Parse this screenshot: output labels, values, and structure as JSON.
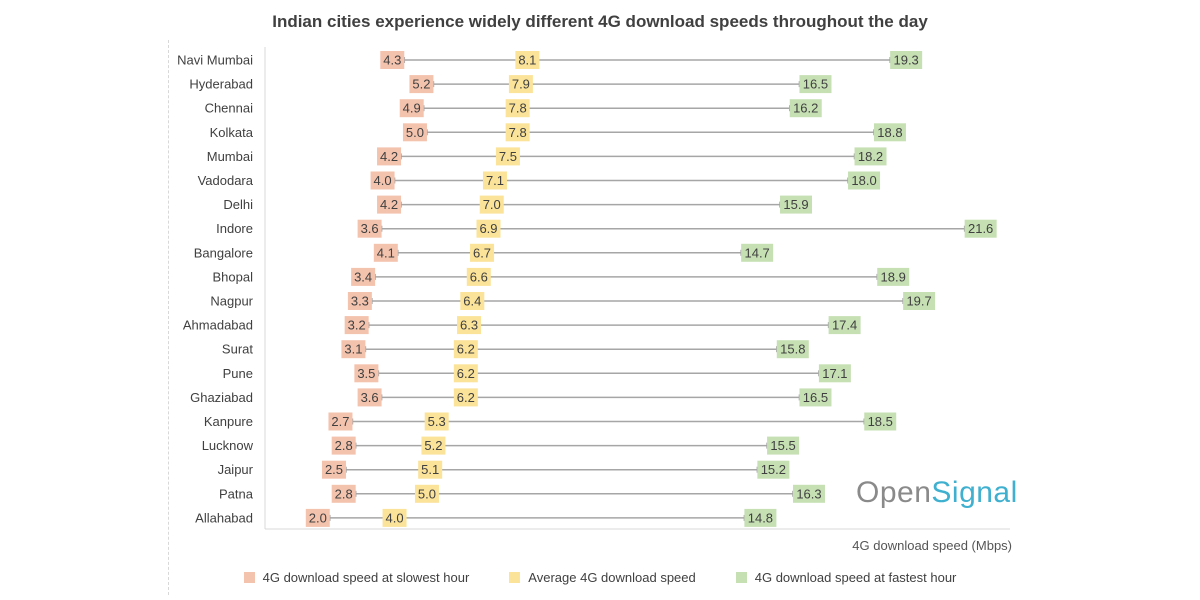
{
  "chart_data": {
    "type": "dumbbell",
    "title": "Indian cities experience widely different 4G download speeds throughout the day",
    "xlabel": "4G download speed (Mbps)",
    "xlim": [
      0,
      23
    ],
    "categories": [
      "Navi Mumbai",
      "Hyderabad",
      "Chennai",
      "Kolkata",
      "Mumbai",
      "Vadodara",
      "Delhi",
      "Indore",
      "Bangalore",
      "Bhopal",
      "Nagpur",
      "Ahmadabad",
      "Surat",
      "Pune",
      "Ghaziabad",
      "Kanpure",
      "Lucknow",
      "Jaipur",
      "Patna",
      "Allahabad"
    ],
    "series": [
      {
        "name": "4G download speed at slowest hour",
        "color": "#f4c3ae",
        "values": [
          4.3,
          5.2,
          4.9,
          5.0,
          4.2,
          4.0,
          4.2,
          3.6,
          4.1,
          3.4,
          3.3,
          3.2,
          3.1,
          3.5,
          3.6,
          2.7,
          2.8,
          2.5,
          2.8,
          2.0
        ],
        "labels": [
          "4.3",
          "5.2",
          "4.9",
          "5.0",
          "4.2",
          "4.0",
          "4.2",
          "3.6",
          "4.1",
          "3.4",
          "3.3",
          "3.2",
          "3.1",
          "3.5",
          "3.6",
          "2.7",
          "2.8",
          "2.5",
          "2.8",
          "2.0"
        ]
      },
      {
        "name": "Average 4G download speed",
        "color": "#fbe39a",
        "values": [
          8.1,
          7.9,
          7.8,
          7.8,
          7.5,
          7.1,
          7.0,
          6.9,
          6.7,
          6.6,
          6.4,
          6.3,
          6.2,
          6.2,
          6.2,
          5.3,
          5.2,
          5.1,
          5.0,
          4.0
        ],
        "labels": [
          "8.1",
          "7.9",
          "7.8",
          "7.8",
          "7.5",
          "7.1",
          "7.0",
          "6.9",
          "6.7",
          "6.6",
          "6.4",
          "6.3",
          "6.2",
          "6.2",
          "6.2",
          "5.3",
          "5.2",
          "5.1",
          "5.0",
          "4.0"
        ]
      },
      {
        "name": "4G download speed at fastest hour",
        "color": "#c6e0b4",
        "values": [
          19.3,
          16.5,
          16.2,
          18.8,
          18.2,
          18.0,
          15.9,
          21.6,
          14.7,
          18.9,
          19.7,
          17.4,
          15.8,
          17.1,
          16.5,
          18.5,
          15.5,
          15.2,
          16.3,
          14.8
        ],
        "labels": [
          "19.3",
          "16.5",
          "16.2",
          "18.8",
          "18.2",
          "18.0",
          "15.9",
          "21.6",
          "14.7",
          "18.9",
          "19.7",
          "17.4",
          "15.8",
          "17.1",
          "16.5",
          "18.5",
          "15.5",
          "15.2",
          "16.3",
          "14.8"
        ]
      }
    ]
  },
  "legend": {
    "slowest": "4G download speed at slowest hour",
    "average": "Average 4G download speed",
    "fastest": "4G download speed at fastest hour"
  },
  "logo": {
    "part1": "Open",
    "part2": "Signal"
  },
  "colors": {
    "line": "#a6a6a6",
    "axis": "#d9d9d9"
  }
}
